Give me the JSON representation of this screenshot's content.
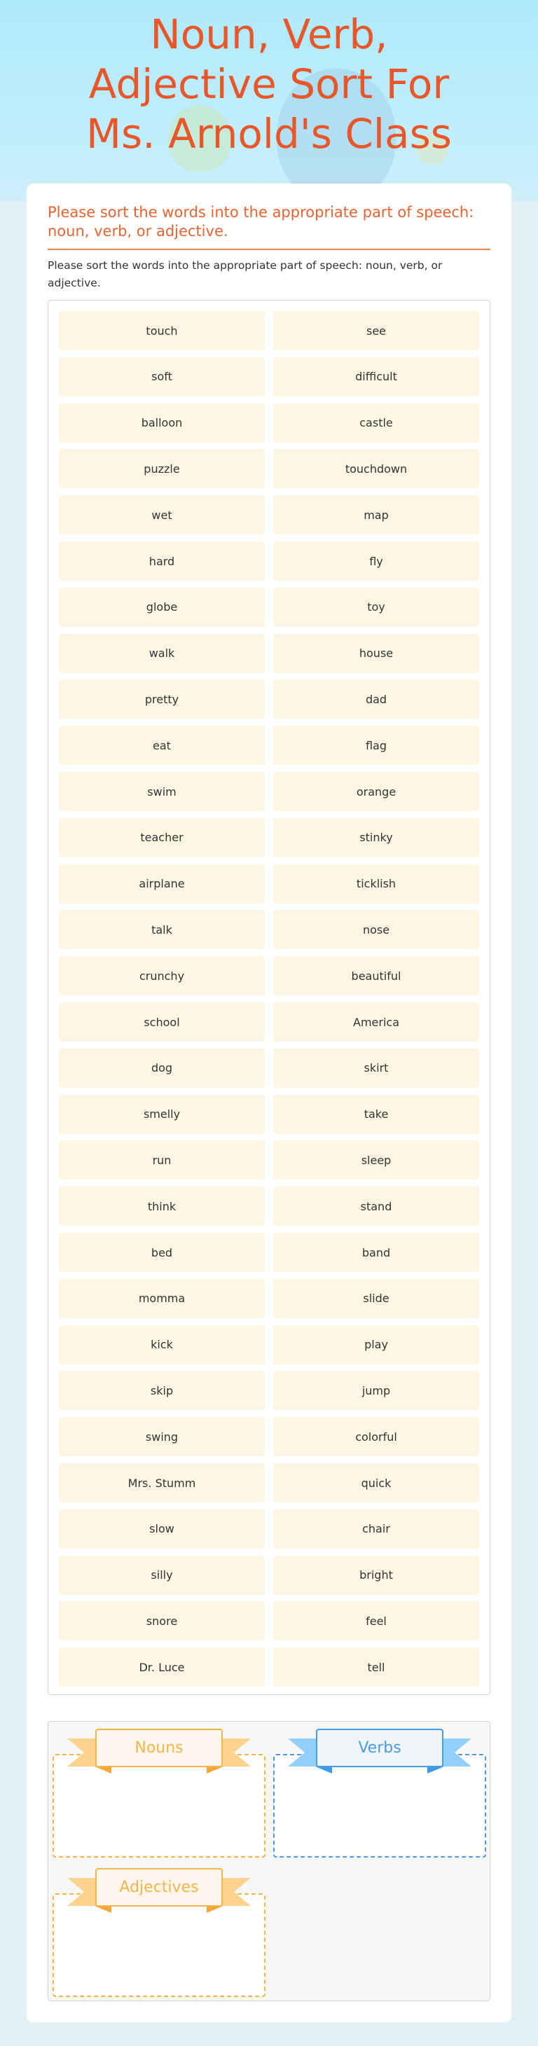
{
  "header": {
    "title": "Noun, Verb, Adjective Sort For Ms. Arnold's Class"
  },
  "question": {
    "title": "Please sort the words into the appropriate part of speech: noun, verb, or adjective.",
    "description": "Please sort the words into the appropriate part of speech: noun, verb, or adjective."
  },
  "words": [
    "touch",
    "see",
    "soft",
    "difficult",
    "balloon",
    "castle",
    "puzzle",
    "touchdown",
    "wet",
    "map",
    "hard",
    "fly",
    "globe",
    "toy",
    "walk",
    "house",
    "pretty",
    "dad",
    "eat",
    "flag",
    "swim",
    "orange",
    "teacher",
    "stinky",
    "airplane",
    "ticklish",
    "talk",
    "nose",
    "crunchy",
    "beautiful",
    "school",
    "America",
    "dog",
    "skirt",
    "smelly",
    "take",
    "run",
    "sleep",
    "think",
    "stand",
    "bed",
    "band",
    "momma",
    "slide",
    "kick",
    "play",
    "skip",
    "jump",
    "swing",
    "colorful",
    "Mrs. Stumm",
    "quick",
    "slow",
    "chair",
    "silly",
    "bright",
    "snore",
    "feel",
    "Dr. Luce",
    "tell"
  ],
  "categories": [
    {
      "label": "Nouns",
      "color": "#f2b54a",
      "wing": "#ffd28f",
      "fold": "#f7a73a",
      "bg": "#fdf6ec"
    },
    {
      "label": "Verbs",
      "color": "#4a9be0",
      "wing": "#92cffb",
      "fold": "#3a9be8",
      "bg": "#eff4f8"
    },
    {
      "label": "Adjectives",
      "color": "#f2b54a",
      "wing": "#ffd28f",
      "fold": "#f7a73a",
      "bg": "#fdf6ec"
    }
  ],
  "colors": {
    "accent": "#e8572a",
    "tile": "#fdf6e4"
  }
}
